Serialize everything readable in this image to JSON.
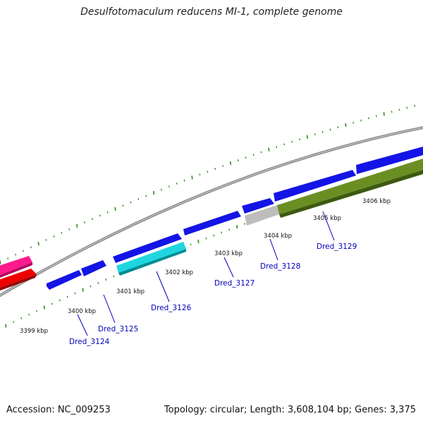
{
  "title": "Desulfotomaculum reducens MI-1, complete genome",
  "footer": {
    "accession": "Accession: NC_009253",
    "summary": "Topology: circular; Length: 3,608,104 bp; Genes: 3,375"
  },
  "colors": {
    "backbone": "#8c8c8c",
    "tick": "#2f8a1a",
    "cds_forward": "#1414e6",
    "cds_reverse_cyan": "#1fd6e0",
    "cds_reverse_grey": "#bdbdbd",
    "cds_reverse_olive": "#6b8e23",
    "rna_pink": "#ff1a8c",
    "rna_red": "#ee0000",
    "label": "#0000bb"
  },
  "kbp_labels": [
    "3399 kbp",
    "3400 kbp",
    "3401 kbp",
    "3402 kbp",
    "3403 kbp",
    "3404 kbp",
    "3405 kbp",
    "3406 kbp"
  ],
  "gene_labels": [
    "Dred_3124",
    "Dred_3125",
    "Dred_3126",
    "Dred_3127",
    "Dred_3128",
    "Dred_3129"
  ]
}
